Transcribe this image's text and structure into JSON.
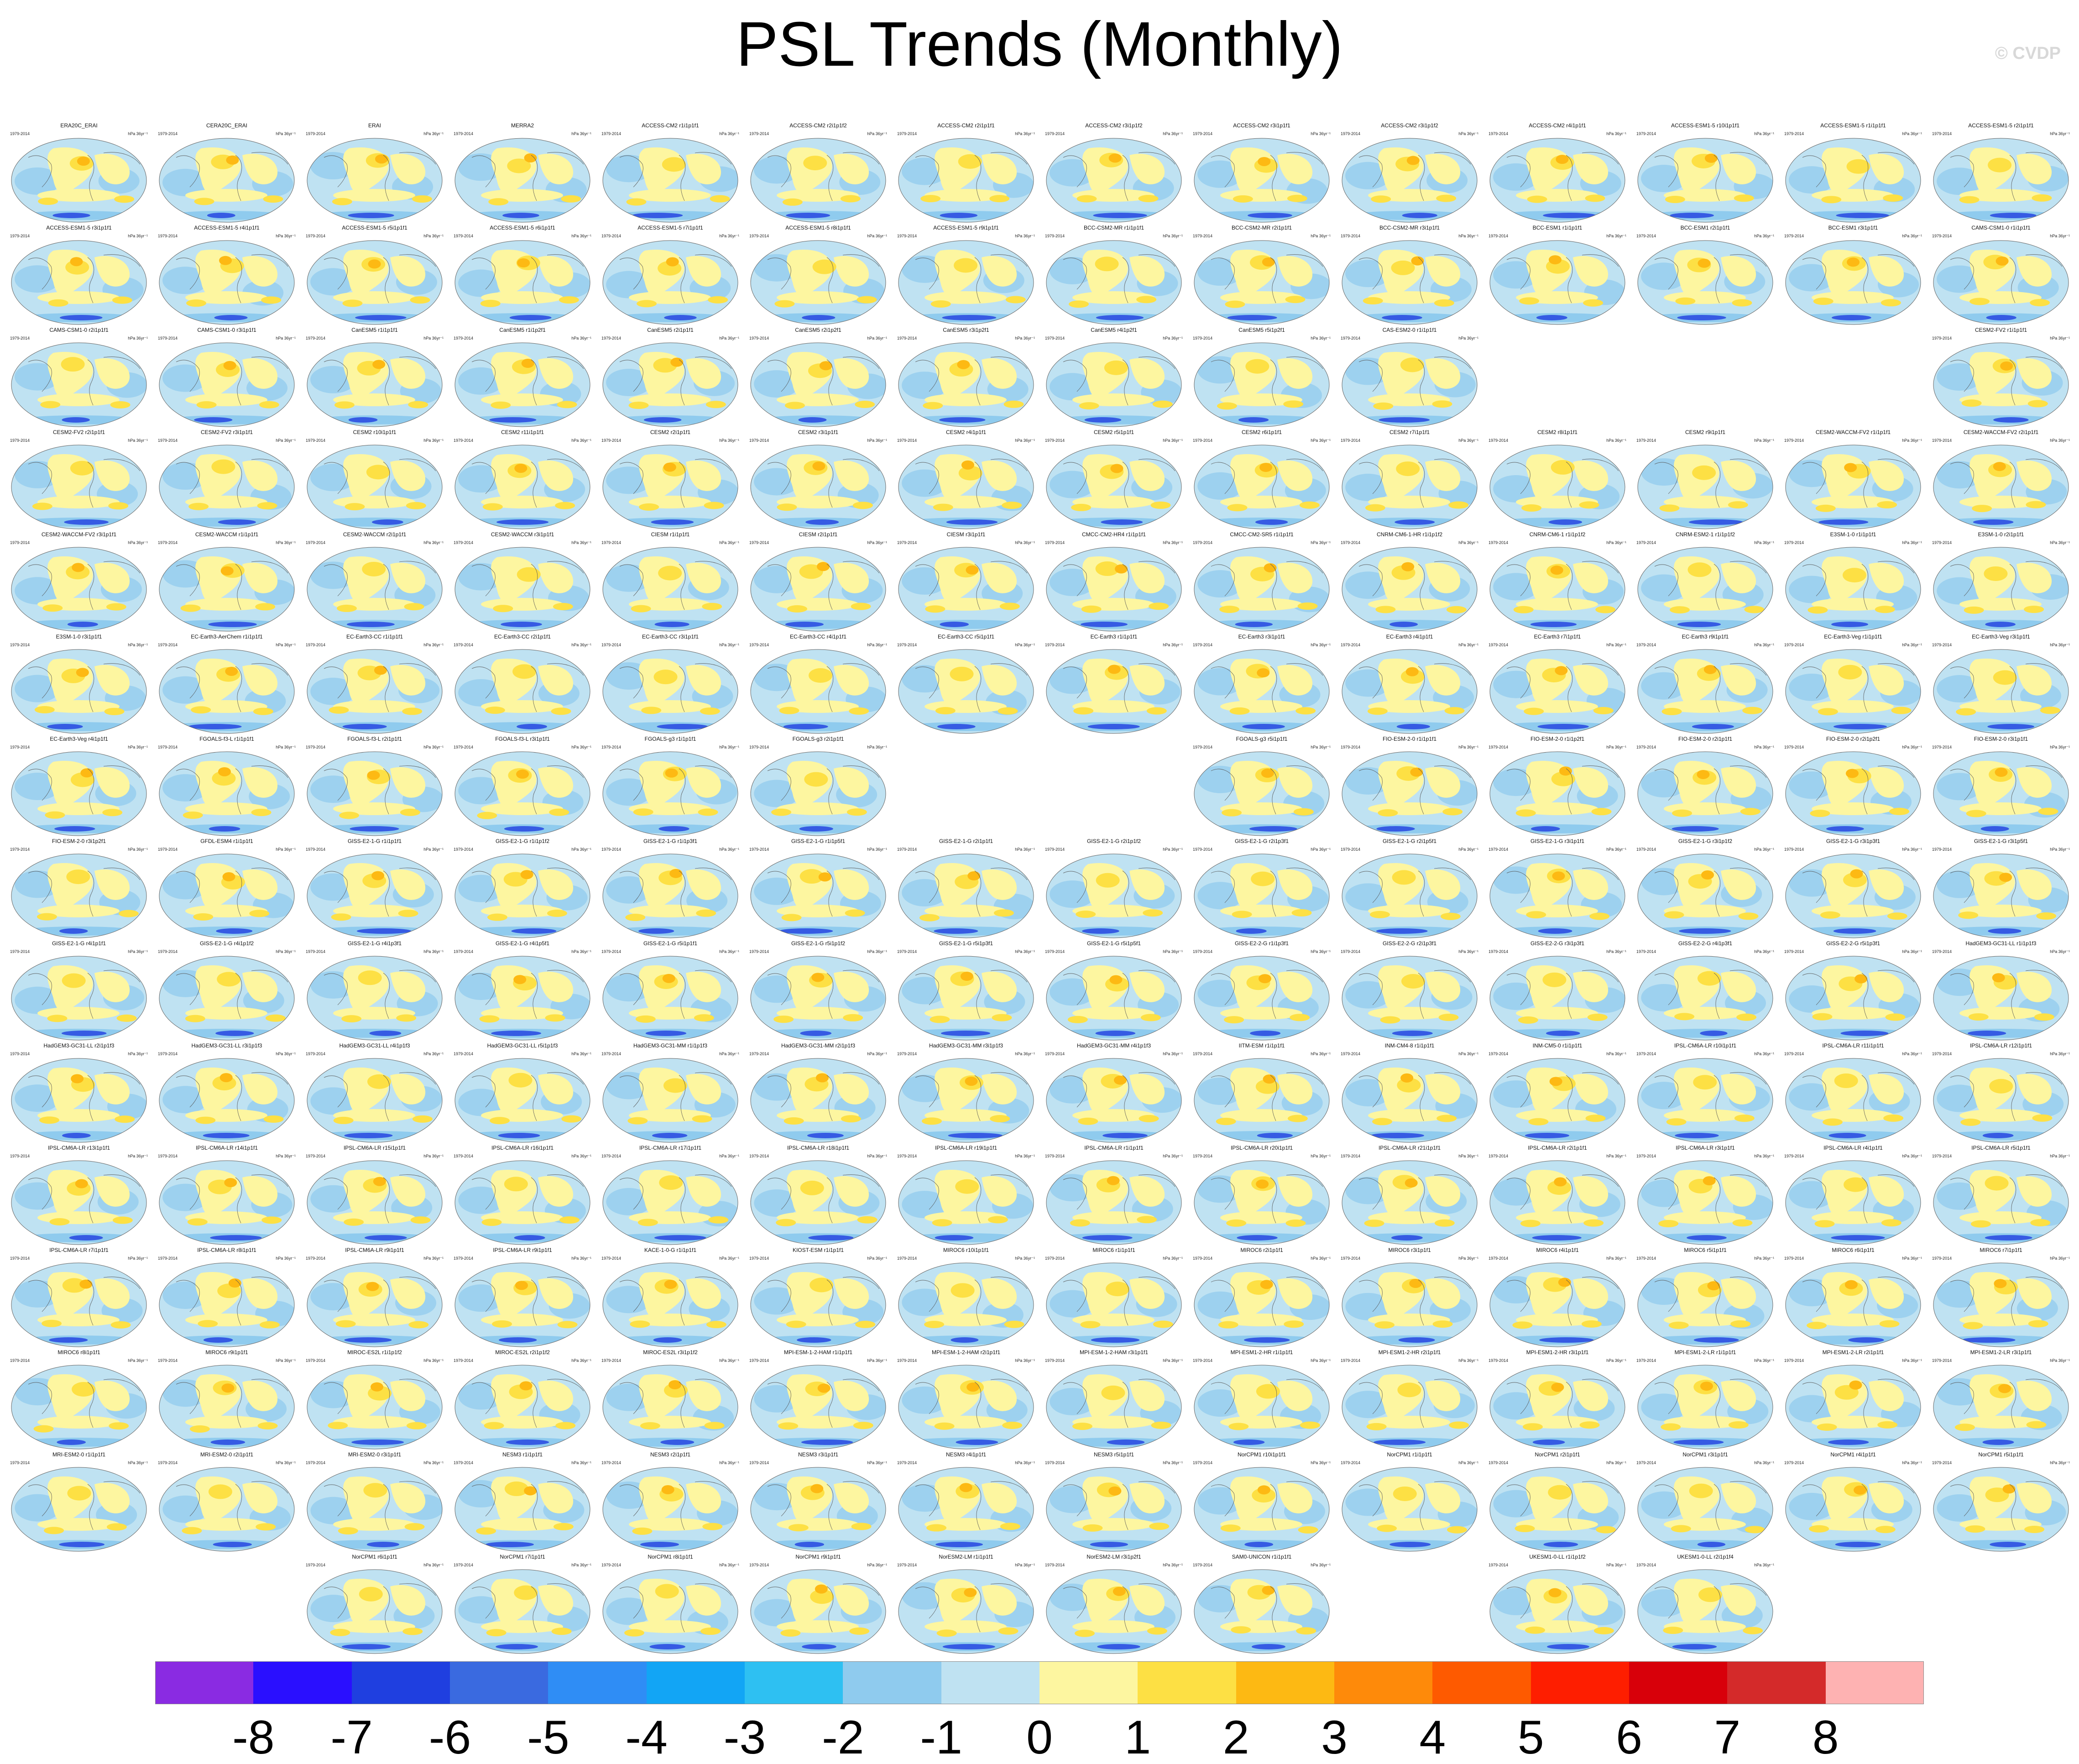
{
  "title": "PSL Trends (Monthly)",
  "watermark": "© CVDP",
  "unit_label": "hPa 36yr⁻¹",
  "period_default": "1979-2014",
  "colors": {
    "ocean_neg_light": "#bfe2f2",
    "ocean_neg_mid": "#8fcbee",
    "land_pos_light": "#fdf6a0",
    "pos_mid": "#fde044",
    "pos_strong": "#fdb913",
    "neg_strong": "#1f3fe0"
  },
  "colorbar": {
    "colors": [
      "#8a2be2",
      "#2a0fff",
      "#1f3fe0",
      "#3a6ae0",
      "#2f8df5",
      "#12a5f5",
      "#2ec0f2",
      "#8fcbee",
      "#bfe2f2",
      "#fdf6a0",
      "#fde044",
      "#fdb913",
      "#fe8a0a",
      "#fe5a00",
      "#fe1e00",
      "#d8000a",
      "#d42a2a",
      "#feb2b2"
    ],
    "ticks": [
      "-8",
      "-7",
      "-6",
      "-5",
      "-4",
      "-3",
      "-2",
      "-1",
      "0",
      "1",
      "2",
      "3",
      "4",
      "5",
      "6",
      "7",
      "8"
    ]
  },
  "rows": [
    [
      "ERA20C_ERAI",
      "CERA20C_ERAI",
      "ERAI",
      "MERRA2",
      "ACCESS-CM2 r1i1p1f1",
      "ACCESS-CM2 r2i1p1f2",
      "ACCESS-CM2 r2i1p1f1",
      "ACCESS-CM2 r3i1p1f2",
      "ACCESS-CM2 r3i1p1f1",
      "ACCESS-CM2 r3i1p1f2",
      "ACCESS-CM2 r4i1p1f1",
      "ACCESS-ESM1-5 r10i1p1f1",
      "ACCESS-ESM1-5 r1i1p1f1",
      "ACCESS-ESM1-5 r2i1p1f1"
    ],
    [
      "ACCESS-ESM1-5 r3i1p1f1",
      "ACCESS-ESM1-5 r4i1p1f1",
      "ACCESS-ESM1-5 r5i1p1f1",
      "ACCESS-ESM1-5 r6i1p1f1",
      "ACCESS-ESM1-5 r7i1p1f1",
      "ACCESS-ESM1-5 r8i1p1f1",
      "ACCESS-ESM1-5 r9i1p1f1",
      "BCC-CSM2-MR r1i1p1f1",
      "BCC-CSM2-MR r2i1p1f1",
      "BCC-CSM2-MR r3i1p1f1",
      "BCC-ESM1 r1i1p1f1",
      "BCC-ESM1 r2i1p1f1",
      "BCC-ESM1 r3i1p1f1",
      "CAMS-CSM1-0 r1i1p1f1"
    ],
    [
      "CAMS-CSM1-0 r2i1p1f1",
      "CAMS-CSM1-0 r3i1p1f1",
      "CanESM5 r1i1p1f1",
      "CanESM5 r1i1p2f1",
      "CanESM5 r2i1p1f1",
      "CanESM5 r2i1p2f1",
      "CanESM5 r3i1p2f1",
      "CanESM5 r4i1p2f1",
      "CanESM5 r5i1p2f1",
      "CAS-ESM2-0 r1i1p1f1",
      null,
      null,
      null,
      "CESM2-FV2 r1i1p1f1"
    ],
    [
      "CESM2-FV2 r2i1p1f1",
      "CESM2-FV2 r3i1p1f1",
      "CESM2 r10i1p1f1",
      "CESM2 r11i1p1f1",
      "CESM2 r2i1p1f1",
      "CESM2 r3i1p1f1",
      "CESM2 r4i1p1f1",
      "CESM2 r5i1p1f1",
      "CESM2 r6i1p1f1",
      "CESM2 r7i1p1f1",
      "CESM2 r8i1p1f1",
      "CESM2 r9i1p1f1",
      "CESM2-WACCM-FV2 r1i1p1f1",
      "CESM2-WACCM-FV2 r2i1p1f1"
    ],
    [
      "CESM2-WACCM-FV2 r3i1p1f1",
      "CESM2-WACCM r1i1p1f1",
      "CESM2-WACCM r2i1p1f1",
      "CESM2-WACCM r3i1p1f1",
      "CIESM r1i1p1f1",
      "CIESM r2i1p1f1",
      "CIESM r3i1p1f1",
      "CMCC-CM2-HR4 r1i1p1f1",
      "CMCC-CM2-SR5 r1i1p1f1",
      "CNRM-CM6-1-HR r1i1p1f2",
      "CNRM-CM6-1 r1i1p1f2",
      "CNRM-ESM2-1 r1i1p1f2",
      "E3SM-1-0 r1i1p1f1",
      "E3SM-1-0 r2i1p1f1"
    ],
    [
      "E3SM-1-0 r3i1p1f1",
      "EC-Earth3-AerChem r1i1p1f1",
      "EC-Earth3-CC r1i1p1f1",
      "EC-Earth3-CC r2i1p1f1",
      "EC-Earth3-CC r3i1p1f1",
      "EC-Earth3-CC r4i1p1f1",
      "EC-Earth3-CC r5i1p1f1",
      "EC-Earth3 r1i1p1f1",
      "EC-Earth3 r3i1p1f1",
      "EC-Earth3 r4i1p1f1",
      "EC-Earth3 r7i1p1f1",
      "EC-Earth3 r9i1p1f1",
      "EC-Earth3-Veg r1i1p1f1",
      "EC-Earth3-Veg r3i1p1f1"
    ],
    [
      "EC-Earth3-Veg r4i1p1f1",
      "FGOALS-f3-L r1i1p1f1",
      "FGOALS-f3-L r2i1p1f1",
      "FGOALS-f3-L r3i1p1f1",
      "FGOALS-g3 r1i1p1f1",
      "FGOALS-g3 r2i1p1f1",
      null,
      null,
      "FGOALS-g3 r5i1p1f1",
      "FIO-ESM-2-0 r1i1p1f1",
      "FIO-ESM-2-0 r1i1p2f1",
      "FIO-ESM-2-0 r2i1p1f1",
      "FIO-ESM-2-0 r2i1p2f1",
      "FIO-ESM-2-0 r3i1p1f1"
    ],
    [
      "FIO-ESM-2-0 r3i1p2f1",
      "GFDL-ESM4 r1i1p1f1",
      "GISS-E2-1-G r1i1p1f1",
      "GISS-E2-1-G r1i1p1f2",
      "GISS-E2-1-G r1i1p3f1",
      "GISS-E2-1-G r1i1p5f1",
      "GISS-E2-1-G r2i1p1f1",
      "GISS-E2-1-G r2i1p1f2",
      "GISS-E2-1-G r2i1p3f1",
      "GISS-E2-1-G r2i1p5f1",
      "GISS-E2-1-G r3i1p1f1",
      "GISS-E2-1-G r3i1p1f2",
      "GISS-E2-1-G r3i1p3f1",
      "GISS-E2-1-G r3i1p5f1"
    ],
    [
      "GISS-E2-1-G r4i1p1f1",
      "GISS-E2-1-G r4i1p1f2",
      "GISS-E2-1-G r4i1p3f1",
      "GISS-E2-1-G r4i1p5f1",
      "GISS-E2-1-G r5i1p1f1",
      "GISS-E2-1-G r5i1p1f2",
      "GISS-E2-1-G r5i1p3f1",
      "GISS-E2-1-G r5i1p5f1",
      "GISS-E2-2-G r1i1p3f1",
      "GISS-E2-2-G r2i1p3f1",
      "GISS-E2-2-G r3i1p3f1",
      "GISS-E2-2-G r4i1p3f1",
      "GISS-E2-2-G r5i1p3f1",
      "HadGEM3-GC31-LL r1i1p1f3"
    ],
    [
      "HadGEM3-GC31-LL r2i1p1f3",
      "HadGEM3-GC31-LL r3i1p1f3",
      "HadGEM3-GC31-LL r4i1p1f3",
      "HadGEM3-GC31-LL r5i1p1f3",
      "HadGEM3-GC31-MM r1i1p1f3",
      "HadGEM3-GC31-MM r2i1p1f3",
      "HadGEM3-GC31-MM r3i1p1f3",
      "HadGEM3-GC31-MM r4i1p1f3",
      "IITM-ESM r1i1p1f1",
      "INM-CM4-8 r1i1p1f1",
      "INM-CM5-0 r1i1p1f1",
      "IPSL-CM6A-LR r10i1p1f1",
      "IPSL-CM6A-LR r11i1p1f1",
      "IPSL-CM6A-LR r12i1p1f1"
    ],
    [
      "IPSL-CM6A-LR r13i1p1f1",
      "IPSL-CM6A-LR r14i1p1f1",
      "IPSL-CM6A-LR r15i1p1f1",
      "IPSL-CM6A-LR r16i1p1f1",
      "IPSL-CM6A-LR r17i1p1f1",
      "IPSL-CM6A-LR r18i1p1f1",
      "IPSL-CM6A-LR r19i1p1f1",
      "IPSL-CM6A-LR r1i1p1f1",
      "IPSL-CM6A-LR r20i1p1f1",
      "IPSL-CM6A-LR r21i1p1f1",
      "IPSL-CM6A-LR r2i1p1f1",
      "IPSL-CM6A-LR r3i1p1f1",
      "IPSL-CM6A-LR r4i1p1f1",
      "IPSL-CM6A-LR r5i1p1f1"
    ],
    [
      "IPSL-CM6A-LR r7i1p1f1",
      "IPSL-CM6A-LR r8i1p1f1",
      "IPSL-CM6A-LR r9i1p1f1",
      "IPSL-CM6A-LR r9i1p1f1",
      "KACE-1-0-G r1i1p1f1",
      "KIOST-ESM r1i1p1f1",
      "MIROC6 r10i1p1f1",
      "MIROC6 r1i1p1f1",
      "MIROC6 r2i1p1f1",
      "MIROC6 r3i1p1f1",
      "MIROC6 r4i1p1f1",
      "MIROC6 r5i1p1f1",
      "MIROC6 r6i1p1f1",
      "MIROC6 r7i1p1f1"
    ],
    [
      "MIROC6 r8i1p1f1",
      "MIROC6 r9i1p1f1",
      "MIROC-ES2L r1i1p1f2",
      "MIROC-ES2L r2i1p1f2",
      "MIROC-ES2L r3i1p1f2",
      "MPI-ESM-1-2-HAM r1i1p1f1",
      "MPI-ESM-1-2-HAM r2i1p1f1",
      "MPI-ESM-1-2-HAM r3i1p1f1",
      "MPI-ESM1-2-HR r1i1p1f1",
      "MPI-ESM1-2-HR r2i1p1f1",
      "MPI-ESM1-2-HR r3i1p1f1",
      "MPI-ESM1-2-LR r1i1p1f1",
      "MPI-ESM1-2-LR r2i1p1f1",
      "MPI-ESM1-2-LR r3i1p1f1"
    ],
    [
      "MRI-ESM2-0 r1i1p1f1",
      "MRI-ESM2-0 r2i1p1f1",
      "MRI-ESM2-0 r3i1p1f1",
      "NESM3 r1i1p1f1",
      "NESM3 r2i1p1f1",
      "NESM3 r3i1p1f1",
      "NESM3 r4i1p1f1",
      "NESM3 r5i1p1f1",
      "NorCPM1 r10i1p1f1",
      "NorCPM1 r1i1p1f1",
      "NorCPM1 r2i1p1f1",
      "NorCPM1 r3i1p1f1",
      "NorCPM1 r4i1p1f1",
      "NorCPM1 r5i1p1f1"
    ],
    [
      null,
      null,
      "NorCPM1 r6i1p1f1",
      "NorCPM1 r7i1p1f1",
      "NorCPM1 r8i1p1f1",
      "NorCPM1 r9i1p1f1",
      "NorESM2-LM r1i1p1f1",
      "NorESM2-LM r3i1p2f1",
      "SAM0-UNICON r1i1p1f1",
      null,
      "UKESM1-0-LL r1i1p1f2",
      "UKESM1-0-LL r2i1p1f4",
      null,
      null
    ]
  ]
}
